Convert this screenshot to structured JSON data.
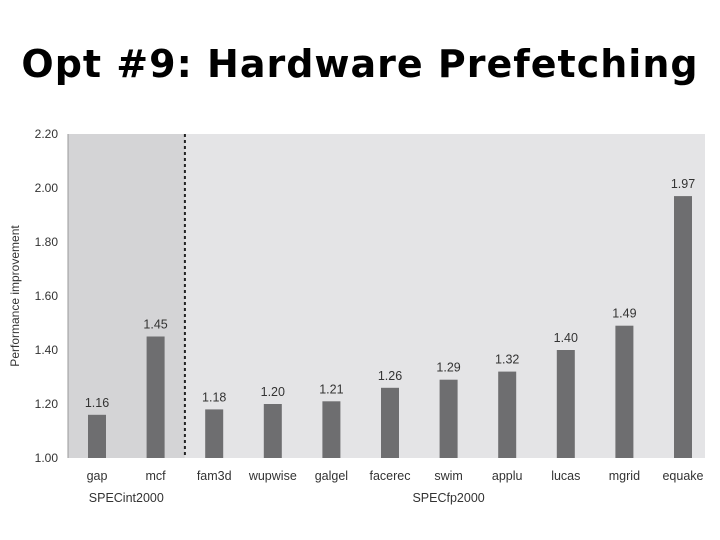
{
  "slide": {
    "title": "Opt #9: Hardware Prefetching"
  },
  "chart_data": {
    "type": "bar",
    "title": "",
    "xlabel": "",
    "ylabel": "Performance improvement",
    "ylim": [
      1.0,
      2.2
    ],
    "yticks": [
      "1.00",
      "1.20",
      "1.40",
      "1.60",
      "1.80",
      "2.00",
      "2.20"
    ],
    "categories": [
      "gap",
      "mcf",
      "fam3d",
      "wupwise",
      "galgel",
      "facerec",
      "swim",
      "applu",
      "lucas",
      "mgrid",
      "equake"
    ],
    "values": [
      1.16,
      1.45,
      1.18,
      1.2,
      1.21,
      1.26,
      1.29,
      1.32,
      1.4,
      1.49,
      1.97
    ],
    "value_labels": [
      "1.16",
      "1.45",
      "1.18",
      "1.20",
      "1.21",
      "1.26",
      "1.29",
      "1.32",
      "1.40",
      "1.49",
      "1.97"
    ],
    "groups": [
      {
        "label": "SPECint2000",
        "categories": [
          "gap",
          "mcf"
        ]
      },
      {
        "label": "SPECfp2000",
        "categories": [
          "fam3d",
          "wupwise",
          "galgel",
          "facerec",
          "swim",
          "applu",
          "lucas",
          "mgrid",
          "equake"
        ]
      }
    ],
    "grid": false,
    "colors": {
      "bar": "#6e6e70",
      "int_background": "#d4d4d6",
      "fp_background": "#e4e4e6",
      "text": "#333333"
    }
  }
}
